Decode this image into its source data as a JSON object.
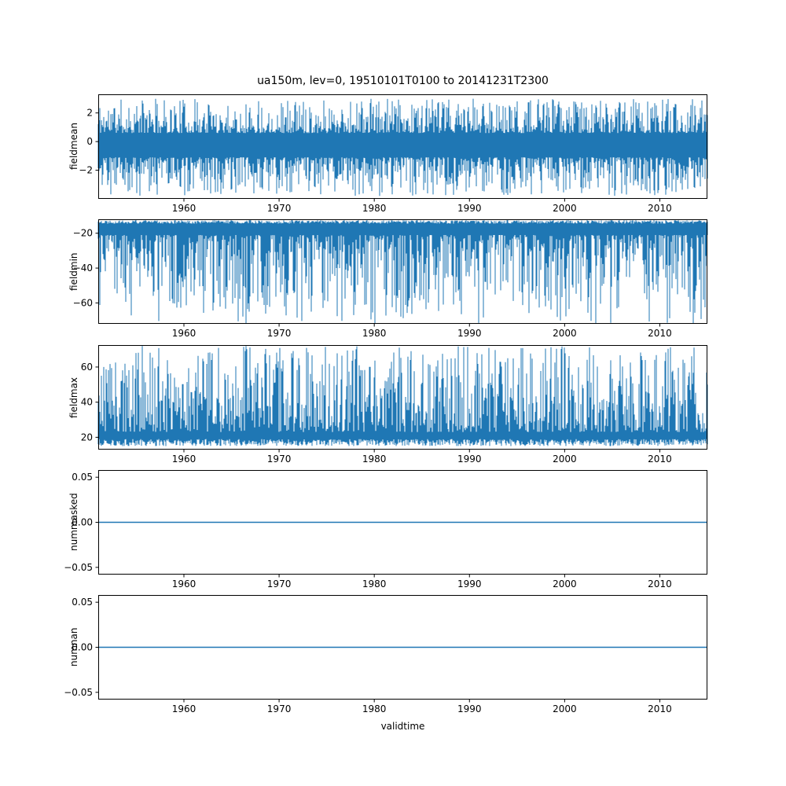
{
  "figure": {
    "title": "ua150m, lev=0, 19510101T0100 to 20141231T2300",
    "xlabel": "validtime",
    "line_color": "#1f77b4",
    "axis_color": "#000000",
    "background": "#ffffff",
    "x_range": [
      1951,
      2015
    ],
    "xticks": [
      {
        "v": 1960,
        "label": "1960"
      },
      {
        "v": 1970,
        "label": "1970"
      },
      {
        "v": 1980,
        "label": "1980"
      },
      {
        "v": 1990,
        "label": "1990"
      },
      {
        "v": 2000,
        "label": "2000"
      },
      {
        "v": 2010,
        "label": "2010"
      }
    ]
  },
  "chart_data": [
    {
      "type": "line",
      "name": "fieldmean",
      "ylabel": "fieldmean",
      "ylim": [
        -4.0,
        3.3
      ],
      "yticks": [
        {
          "v": 2,
          "label": "2"
        },
        {
          "v": 0,
          "label": "0"
        },
        {
          "v": -2,
          "label": "−2"
        }
      ],
      "series": {
        "kind": "noise-band",
        "seed": 11,
        "upper": {
          "base": 0.6,
          "amp": 2.4,
          "pow": 2
        },
        "lower": {
          "base": -1.1,
          "amp": 2.7,
          "pow": 2
        },
        "value_range": [
          -3.8,
          3.0
        ],
        "baseline": -0.3,
        "description": "dense noisy hourly field mean, 1951-2015"
      }
    },
    {
      "type": "line",
      "name": "fieldmin",
      "ylabel": "fieldmin",
      "ylim": [
        -72,
        -12
      ],
      "yticks": [
        {
          "v": -20,
          "label": "−20"
        },
        {
          "v": -40,
          "label": "−40"
        },
        {
          "v": -60,
          "label": "−60"
        }
      ],
      "series": {
        "kind": "noise-band",
        "seed": 22,
        "upper": {
          "base": -14.5,
          "amp": 2.0,
          "pow": 1
        },
        "lower": {
          "base": -21,
          "amp": 51,
          "pow": 2.2
        },
        "value_range": [
          -72,
          -12.5
        ],
        "baseline": -15,
        "description": "dense noisy hourly field minimum with downward spikes to about -72"
      }
    },
    {
      "type": "line",
      "name": "fieldmax",
      "ylabel": "fieldmax",
      "ylim": [
        13,
        72.5
      ],
      "yticks": [
        {
          "v": 60,
          "label": "60"
        },
        {
          "v": 40,
          "label": "40"
        },
        {
          "v": 20,
          "label": "20"
        }
      ],
      "series": {
        "kind": "noise-band",
        "seed": 33,
        "upper": {
          "base": 23,
          "amp": 49,
          "pow": 1.8
        },
        "lower": {
          "base": 19,
          "amp": 4,
          "pow": 1
        },
        "value_range": [
          15,
          72
        ],
        "baseline": 20,
        "description": "dense noisy hourly field maximum with upward spikes to about 72"
      }
    },
    {
      "type": "line",
      "name": "nummasked",
      "ylabel": "nummasked",
      "ylim": [
        -0.058,
        0.058
      ],
      "yticks": [
        {
          "v": 0.05,
          "label": "0.05"
        },
        {
          "v": 0,
          "label": "0.00"
        },
        {
          "v": -0.05,
          "label": "−0.05"
        }
      ],
      "series": {
        "kind": "flat",
        "value": 0,
        "description": "constant zero masked-point count"
      }
    },
    {
      "type": "line",
      "name": "numnan",
      "ylabel": "numnan",
      "ylim": [
        -0.058,
        0.058
      ],
      "yticks": [
        {
          "v": 0.05,
          "label": "0.05"
        },
        {
          "v": 0,
          "label": "0.00"
        },
        {
          "v": -0.05,
          "label": "−0.05"
        }
      ],
      "series": {
        "kind": "flat",
        "value": 0,
        "description": "constant zero NaN count"
      }
    }
  ]
}
